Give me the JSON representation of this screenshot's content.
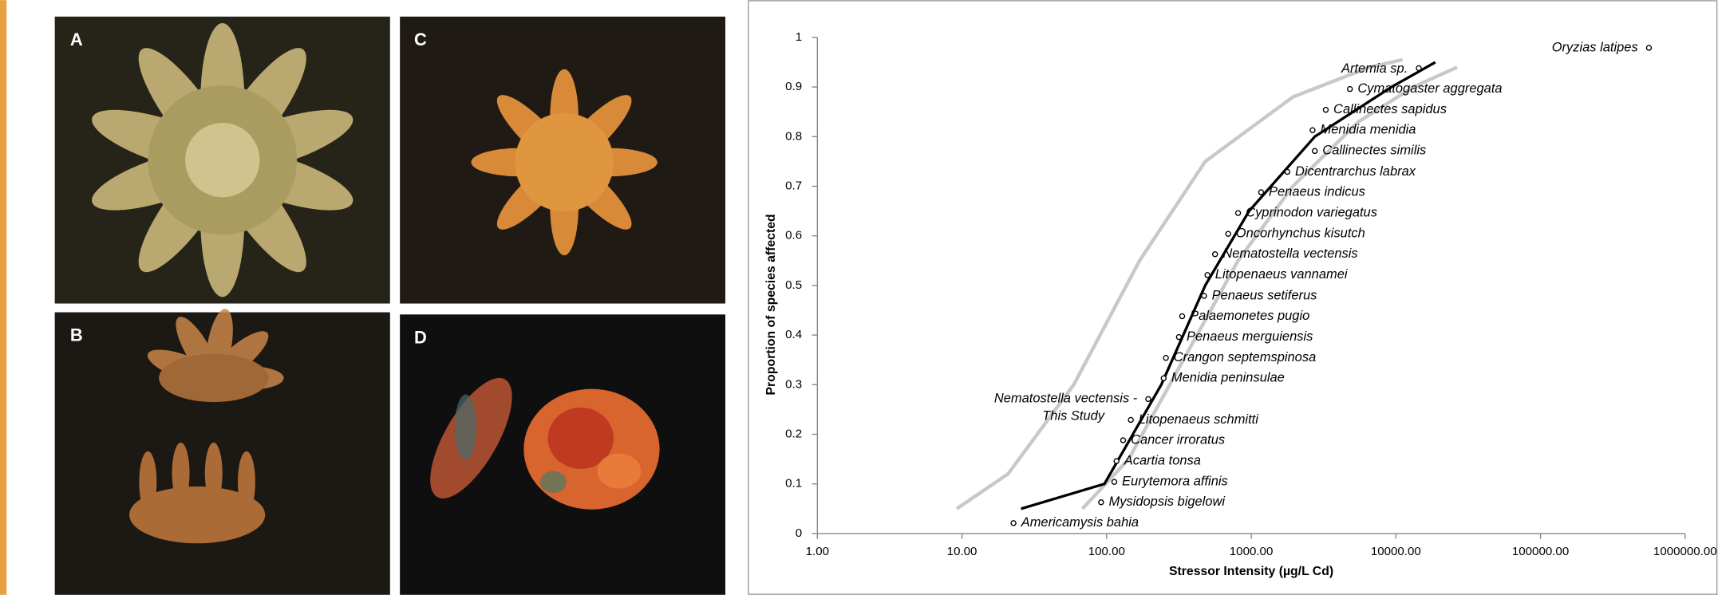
{
  "panels": [
    "A",
    "B",
    "C",
    "D"
  ],
  "chart_data": {
    "type": "scatter",
    "x_label": "Stressor Intensity (µg/L Cd)",
    "y_label": "Proportion of species affected",
    "xscale": "log",
    "xlim": [
      1,
      1000000
    ],
    "ylim": [
      0,
      1
    ],
    "xticks": [
      {
        "value": 1,
        "label": "1.00"
      },
      {
        "value": 10,
        "label": "10.00"
      },
      {
        "value": 100,
        "label": "100.00"
      },
      {
        "value": 1000,
        "label": "1000.00"
      },
      {
        "value": 10000,
        "label": "10000.00"
      },
      {
        "value": 100000,
        "label": "100000.00"
      },
      {
        "value": 1000000,
        "label": "1000000.00"
      }
    ],
    "yticks": [
      0,
      0.1,
      0.2,
      0.3,
      0.4,
      0.5,
      0.6,
      0.7,
      0.8,
      0.9,
      1
    ],
    "series": [
      {
        "kind": "line",
        "color": "#c8c8c8",
        "x": [
          9.2,
          20.8,
          59.3,
          169,
          481,
          1940,
          6580,
          11100
        ],
        "values": [
          0.05,
          0.12,
          0.3,
          0.55,
          0.75,
          0.88,
          0.94,
          0.955
        ]
      },
      {
        "kind": "line",
        "color": "#c8c8c8",
        "x": [
          68,
          142,
          339,
          811,
          1940,
          5520,
          13200,
          26500
        ],
        "values": [
          0.05,
          0.15,
          0.35,
          0.55,
          0.7,
          0.83,
          0.9,
          0.94
        ]
      },
      {
        "kind": "line",
        "color": "#000000",
        "x": [
          25.6,
          96.6,
          239,
          481,
          966,
          2750,
          9330,
          18750
        ],
        "values": [
          0.05,
          0.1,
          0.3,
          0.5,
          0.65,
          0.8,
          0.9,
          0.95
        ]
      },
      {
        "kind": "points",
        "color": "#000000",
        "labels": [
          "Americamysis bahia",
          "Mysidopsis bigelowi",
          "Eurytemora affinis",
          "Acartia tonsa",
          "Cancer irroratus",
          "Litopenaeus schmitti",
          [
            "Nematostella vectensis -",
            "This Study"
          ],
          "Menidia peninsulae",
          "Crangon septemspinosa",
          "Penaeus merguiensis",
          "Palaemonetes pugio",
          "Penaeus setiferus",
          "Litopenaeus vannamei",
          "Nematostella vectensis",
          "Oncorhynchus kisutch",
          "Cyprinodon variegatus",
          "Penaeus indicus",
          "Dicentrarchus labrax",
          "Callinectes similis",
          "Menidia menidia",
          "Callinectes sapidus",
          "Cymatogaster aggregata",
          "Artemia sp.",
          "Oryzias latipes"
        ],
        "x": [
          22.7,
          91.6,
          113,
          117,
          130,
          147,
          194,
          248,
          257,
          316,
          333,
          472,
          498,
          562,
          693,
          811,
          1170,
          1778,
          2750,
          2655,
          3275,
          4810,
          14400,
          562000
        ],
        "values": [
          0.021,
          0.063,
          0.104,
          0.146,
          0.188,
          0.229,
          0.271,
          0.313,
          0.354,
          0.396,
          0.438,
          0.479,
          0.521,
          0.563,
          0.604,
          0.646,
          0.688,
          0.729,
          0.771,
          0.813,
          0.854,
          0.896,
          0.938,
          0.979
        ]
      }
    ]
  }
}
